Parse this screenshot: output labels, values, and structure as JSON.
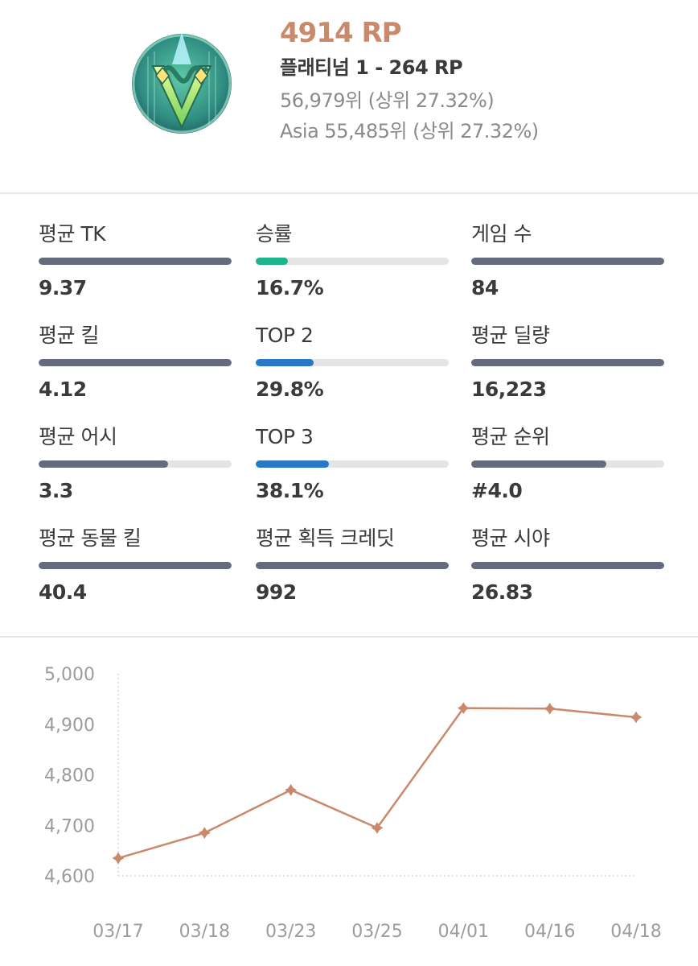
{
  "rank_card": {
    "emblem_icon": "platinum-tier-emblem-icon",
    "rp_total": "4914 RP",
    "tier_line": "플래티넘 1 - 264 RP",
    "global_rank_line": "56,979위 (상위 27.32%)",
    "region_rank_line": "Asia 55,485위 (상위 27.32%)",
    "accent_color": "#c9896a"
  },
  "stats": [
    {
      "label": "평균 TK",
      "value": "9.37",
      "fill": 1.0,
      "color": "#636b7c"
    },
    {
      "label": "승률",
      "value": "16.7%",
      "fill": 0.167,
      "color": "#1fb58c"
    },
    {
      "label": "게임 수",
      "value": "84",
      "fill": 1.0,
      "color": "#636b7c"
    },
    {
      "label": "평균 킬",
      "value": "4.12",
      "fill": 1.0,
      "color": "#636b7c"
    },
    {
      "label": "TOP 2",
      "value": "29.8%",
      "fill": 0.298,
      "color": "#2878c8"
    },
    {
      "label": "평균 딜량",
      "value": "16,223",
      "fill": 1.0,
      "color": "#636b7c"
    },
    {
      "label": "평균 어시",
      "value": "3.3",
      "fill": 0.67,
      "color": "#636b7c"
    },
    {
      "label": "TOP 3",
      "value": "38.1%",
      "fill": 0.381,
      "color": "#2878c8"
    },
    {
      "label": "평균 순위",
      "value": "#4.0",
      "fill": 0.7,
      "color": "#636b7c"
    },
    {
      "label": "평균 동물 킬",
      "value": "40.4",
      "fill": 1.0,
      "color": "#636b7c"
    },
    {
      "label": "평균 획득 크레딧",
      "value": "992",
      "fill": 1.0,
      "color": "#636b7c"
    },
    {
      "label": "평균 시야",
      "value": "26.83",
      "fill": 1.0,
      "color": "#636b7c"
    }
  ],
  "chart_data": {
    "type": "line",
    "title": "",
    "xlabel": "",
    "ylabel": "",
    "categories": [
      "03/17",
      "03/18",
      "03/23",
      "03/25",
      "04/01",
      "04/16",
      "04/18"
    ],
    "series": [
      {
        "values": [
          4635,
          4685,
          4770,
          4695,
          4932,
          4931,
          4914
        ]
      }
    ],
    "ylim": [
      4600,
      5000
    ],
    "yticks": [
      "4,600",
      "4,700",
      "4,800",
      "4,900",
      "5,000"
    ],
    "ytick_values": [
      4600,
      4700,
      4800,
      4900,
      5000
    ],
    "line_color": "#c9896a",
    "grid": "dotted baseline and y-axis"
  }
}
